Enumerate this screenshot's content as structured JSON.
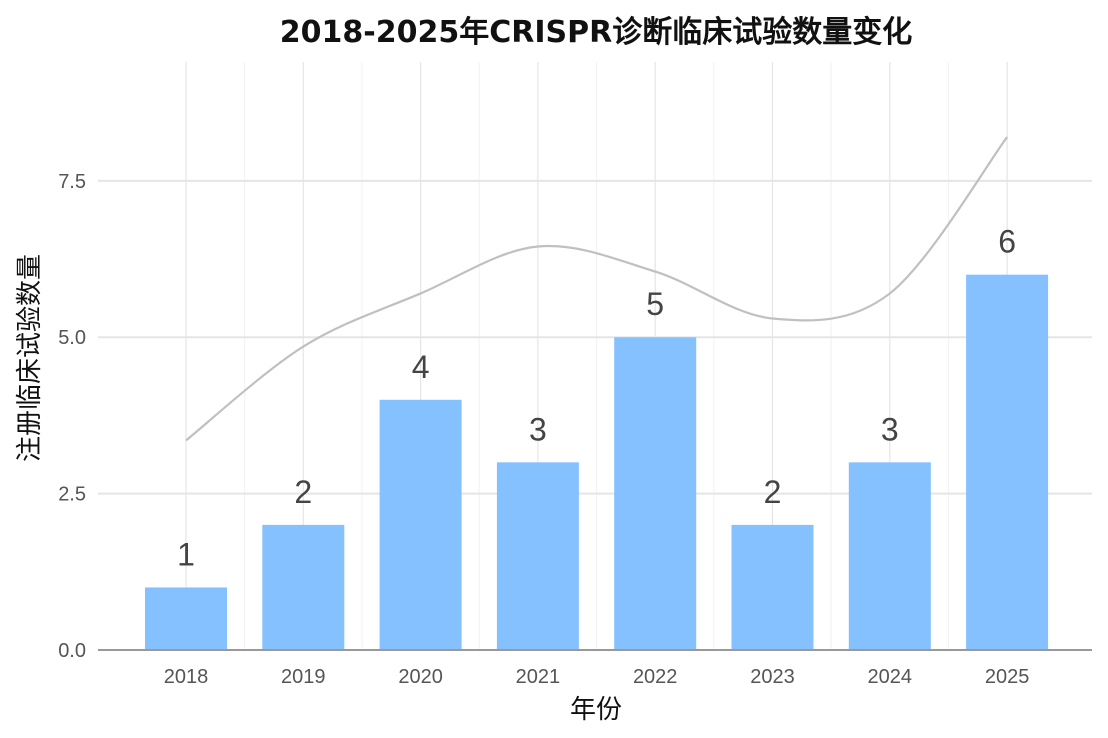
{
  "chart_data": {
    "type": "bar",
    "title": "2018-2025年CRISPR诊断临床试验数量变化",
    "xlabel": "年份",
    "ylabel": "注册临床试验数量",
    "categories": [
      "2018",
      "2019",
      "2020",
      "2021",
      "2022",
      "2023",
      "2024",
      "2025"
    ],
    "series": [
      {
        "values": [
          1,
          2,
          4,
          3,
          5,
          2,
          3,
          6
        ]
      }
    ],
    "data_labels": [
      "1",
      "2",
      "4",
      "3",
      "5",
      "2",
      "3",
      "6"
    ],
    "trend_line": {
      "type": "smooth",
      "x": [
        "2018",
        "2019",
        "2020",
        "2021",
        "2022",
        "2023",
        "2024",
        "2025"
      ],
      "y": [
        3.35,
        4.85,
        5.7,
        6.45,
        6.05,
        5.3,
        5.7,
        8.2
      ]
    },
    "yticks": [
      0,
      2.5,
      5,
      7.5
    ],
    "ytick_labels": [
      "0.0",
      "2.5",
      "5.0",
      "7.5"
    ],
    "ylim": [
      0,
      9.4
    ],
    "grid": true,
    "bar_color": "#85C1FF",
    "trend_color": "#C0C0C0",
    "grid_color": "#E5E5E5"
  }
}
